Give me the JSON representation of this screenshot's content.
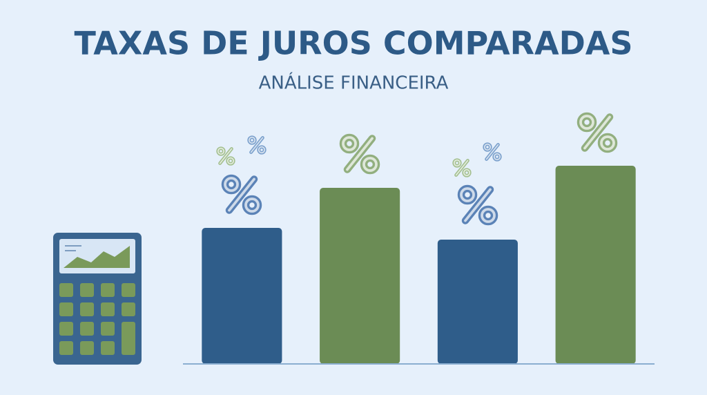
{
  "chart_data": {
    "type": "bar",
    "title": "TAXAS DE JUROS COMPARADAS",
    "subtitle": "ANÁLISE FINANCEIRA",
    "categories": [
      null,
      null,
      null,
      null
    ],
    "values": [
      197,
      255,
      180,
      287
    ],
    "colors": [
      "#2f5d8a",
      "#6b8c55",
      "#2f5d8a",
      "#6b8c55"
    ],
    "ylim": [
      0,
      300
    ]
  }
}
